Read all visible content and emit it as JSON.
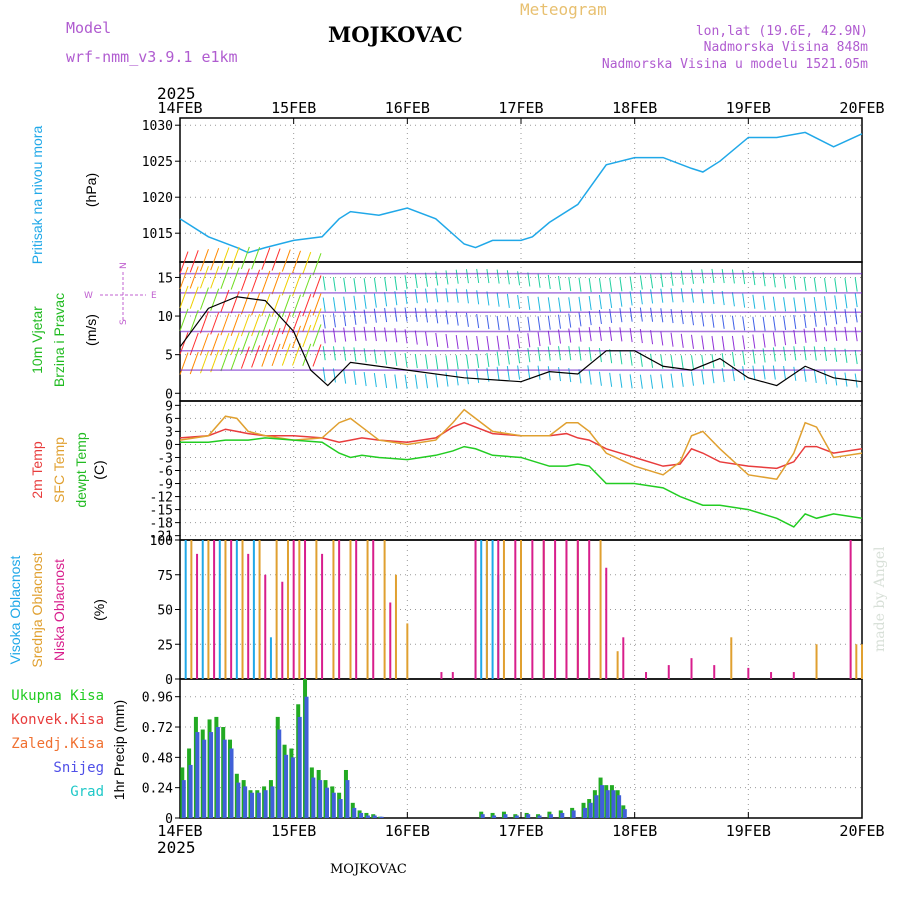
{
  "header": {
    "model_label": "Model",
    "model_name": "wrf-nmm_v3.9.1 e1km",
    "title": "MOJKOVAC",
    "meteogram": "Meteogram",
    "coords": "lon,lat (19.6E, 42.9N)",
    "elevation": "Nadmorska Visina 848m",
    "model_elevation": "Nadmorska Visina u modelu 1521.05m",
    "year_top": "2025",
    "year_bottom": "2025",
    "footer_title": "MOJKOVAC",
    "watermark": "made by Angel"
  },
  "chart_data": [
    {
      "type": "line",
      "panel": "pressure",
      "label": "Pritisak na nivou mora",
      "unit": "(hPa)",
      "ylim": [
        1011,
        1031
      ],
      "yticks": [
        "1030",
        "1025",
        "1020",
        "1015"
      ],
      "color": "#20a8e8",
      "x": [
        0,
        0.25,
        0.5,
        0.6,
        0.75,
        1.0,
        1.25,
        1.4,
        1.5,
        1.75,
        2.0,
        2.25,
        2.5,
        2.6,
        2.75,
        3.0,
        3.1,
        3.25,
        3.5,
        3.75,
        4.0,
        4.25,
        4.5,
        4.6,
        4.75,
        5.0,
        5.25,
        5.5,
        5.75,
        6.0
      ],
      "y": [
        1017,
        1014.5,
        1013,
        1012.3,
        1013,
        1014,
        1014.5,
        1017,
        1018,
        1017.5,
        1018.5,
        1017,
        1013.5,
        1013,
        1014,
        1014,
        1014.5,
        1016.5,
        1019,
        1024.5,
        1025.5,
        1025.5,
        1024,
        1023.5,
        1025,
        1028.3,
        1028.3,
        1029,
        1027,
        1028.8
      ]
    },
    {
      "type": "line",
      "panel": "wind",
      "label": "10m Vjetar",
      "label2": "Brzina i Pravac",
      "unit": "(m/s)",
      "compass": [
        "N",
        "W",
        "E",
        "S"
      ],
      "ylim": [
        -1,
        17
      ],
      "yticks": [
        "15",
        "10",
        "5",
        "0"
      ],
      "x": [
        0,
        0.25,
        0.5,
        0.75,
        1.0,
        1.15,
        1.3,
        1.5,
        1.75,
        2.0,
        2.5,
        3.0,
        3.25,
        3.5,
        3.75,
        4.0,
        4.25,
        4.5,
        4.75,
        5.0,
        5.25,
        5.5,
        5.75,
        6.0
      ],
      "y": [
        6,
        11,
        12.5,
        12,
        8,
        3,
        1,
        4,
        3.5,
        3,
        2,
        1.5,
        2.8,
        2.5,
        5.5,
        5.5,
        3.5,
        3,
        4.5,
        2,
        1,
        3.5,
        2,
        1.5
      ]
    },
    {
      "type": "line",
      "panel": "temperature",
      "labels": [
        "2m Temp",
        "SFC Temp",
        "dewpt Temp"
      ],
      "unit": "(C)",
      "ylim": [
        -22,
        10
      ],
      "yticks": [
        "9",
        "6",
        "3",
        "0",
        "-3",
        "-6",
        "-9",
        "-12",
        "-15",
        "-18",
        "-21"
      ],
      "x": [
        0,
        0.25,
        0.4,
        0.5,
        0.6,
        0.75,
        1.0,
        1.25,
        1.4,
        1.5,
        1.6,
        1.75,
        2.0,
        2.25,
        2.4,
        2.5,
        2.6,
        2.75,
        3.0,
        3.25,
        3.4,
        3.5,
        3.6,
        3.75,
        4.0,
        4.25,
        4.4,
        4.5,
        4.6,
        4.75,
        5.0,
        5.25,
        5.4,
        5.5,
        5.6,
        5.75,
        6.0
      ],
      "series": [
        {
          "name": "2m Temp",
          "color": "#e83c3c",
          "values": [
            1.5,
            2,
            3.5,
            3,
            2.5,
            2,
            2,
            1.5,
            0.5,
            1,
            1.5,
            1,
            0.5,
            1.5,
            4,
            5,
            4,
            2.5,
            2,
            2,
            2.5,
            1.5,
            1,
            -1,
            -3,
            -5,
            -4.5,
            -1,
            -2,
            -4,
            -5,
            -5.5,
            -4,
            -0.5,
            -0.5,
            -2,
            -1
          ]
        },
        {
          "name": "SFC Temp",
          "color": "#e0a030",
          "values": [
            1,
            2,
            6.5,
            6,
            3,
            2,
            1,
            1.5,
            5,
            6,
            4,
            1,
            0,
            1,
            5,
            8,
            6,
            3,
            2,
            2,
            5,
            5,
            3,
            -2,
            -5,
            -7,
            -4,
            2,
            3,
            -1,
            -7,
            -8,
            -2,
            5,
            4,
            -3,
            -2
          ]
        },
        {
          "name": "dewpt Temp",
          "color": "#22cc22",
          "values": [
            0.5,
            0.5,
            1,
            1,
            1,
            1.5,
            1,
            0.5,
            -2,
            -3,
            -2.5,
            -3,
            -3.5,
            -2.5,
            -1.5,
            -0.5,
            -1,
            -2.5,
            -3,
            -5,
            -5,
            -4.5,
            -5,
            -9,
            -9,
            -10,
            -12,
            -13,
            -14,
            -14,
            -15,
            -17,
            -19,
            -16,
            -17,
            -16,
            -17
          ]
        }
      ]
    },
    {
      "type": "bar",
      "panel": "cloud",
      "labels": [
        "Visoka Oblacnost",
        "Srednja Oblacnost",
        "Niska Oblacnost"
      ],
      "unit": "(%)",
      "ylim": [
        0,
        100
      ],
      "yticks": [
        "100",
        "75",
        "50",
        "25",
        "0"
      ],
      "series": [
        {
          "name": "Visoka Oblacnost",
          "color": "#20a8e8",
          "x": [
            0.05,
            0.2,
            0.35,
            0.5,
            0.65,
            0.8,
            1.5,
            2.6,
            2.65,
            2.7,
            2.75,
            2.8
          ],
          "values": [
            100,
            100,
            100,
            100,
            100,
            30,
            70,
            100,
            100,
            100,
            100,
            75
          ]
        },
        {
          "name": "Srednja Oblacnost",
          "color": "#e0a030",
          "x": [
            0.1,
            0.25,
            0.4,
            0.55,
            0.7,
            0.85,
            0.95,
            1.05,
            1.2,
            1.35,
            1.5,
            1.65,
            1.8,
            1.9,
            2.0,
            2.7,
            2.85,
            3.0,
            3.2,
            3.4,
            3.5,
            3.7,
            3.85,
            4.85,
            5.6,
            5.95,
            6.0
          ],
          "values": [
            100,
            100,
            100,
            100,
            100,
            100,
            100,
            100,
            100,
            100,
            100,
            100,
            100,
            75,
            40,
            100,
            100,
            100,
            100,
            100,
            100,
            100,
            20,
            30,
            25,
            25,
            25
          ]
        },
        {
          "name": "Niska Oblacnost",
          "color": "#d81e8c",
          "x": [
            0.15,
            0.3,
            0.45,
            0.6,
            0.75,
            0.9,
            1.0,
            1.1,
            1.25,
            1.4,
            1.55,
            1.7,
            1.85,
            2.3,
            2.4,
            2.6,
            2.8,
            2.95,
            3.1,
            3.2,
            3.3,
            3.4,
            3.5,
            3.6,
            3.75,
            3.9,
            4.1,
            4.3,
            4.5,
            4.7,
            5.0,
            5.2,
            5.4,
            5.9
          ],
          "values": [
            90,
            100,
            100,
            90,
            75,
            70,
            100,
            100,
            90,
            100,
            100,
            100,
            55,
            5,
            5,
            100,
            100,
            100,
            100,
            100,
            100,
            100,
            100,
            100,
            80,
            30,
            5,
            10,
            15,
            10,
            8,
            5,
            5,
            100
          ]
        }
      ]
    },
    {
      "type": "bar",
      "panel": "precip",
      "labels": [
        "Ukupna Kisa",
        "Konvek.Kisa",
        "Zaledj.Kisa",
        "Snijeg",
        "Grad"
      ],
      "label_colors": [
        "#22cc22",
        "#e83c3c",
        "#f07030",
        "#5050e8",
        "#20c8c8"
      ],
      "unit": "1hr Precip (mm)",
      "ylim": [
        0,
        1.1
      ],
      "yticks": [
        "0.96",
        "0.72",
        "0.48",
        "0.24",
        "0"
      ],
      "x": [
        0.02,
        0.08,
        0.14,
        0.2,
        0.26,
        0.32,
        0.38,
        0.44,
        0.5,
        0.56,
        0.62,
        0.68,
        0.74,
        0.8,
        0.86,
        0.92,
        0.98,
        1.04,
        1.1,
        1.16,
        1.22,
        1.28,
        1.34,
        1.4,
        1.46,
        1.52,
        1.58,
        1.64,
        1.7,
        1.76,
        2.65,
        2.75,
        2.85,
        2.95,
        3.05,
        3.15,
        3.25,
        3.35,
        3.45,
        3.55,
        3.6,
        3.65,
        3.7,
        3.75,
        3.8,
        3.85,
        3.9
      ],
      "series": [
        {
          "name": "Ukupna Kisa",
          "color": "#22aa22",
          "values": [
            0.4,
            0.55,
            0.8,
            0.7,
            0.78,
            0.8,
            0.72,
            0.62,
            0.35,
            0.3,
            0.22,
            0.22,
            0.25,
            0.3,
            0.8,
            0.58,
            0.55,
            0.9,
            1.1,
            0.4,
            0.38,
            0.3,
            0.25,
            0.2,
            0.38,
            0.12,
            0.06,
            0.04,
            0.03,
            0.01,
            0.05,
            0.04,
            0.05,
            0.03,
            0.04,
            0.03,
            0.05,
            0.06,
            0.08,
            0.12,
            0.15,
            0.22,
            0.32,
            0.26,
            0.26,
            0.22,
            0.1
          ]
        },
        {
          "name": "Snijeg",
          "color": "#4060d8",
          "values": [
            0.3,
            0.42,
            0.68,
            0.62,
            0.68,
            0.72,
            0.62,
            0.55,
            0.28,
            0.25,
            0.2,
            0.2,
            0.22,
            0.25,
            0.7,
            0.5,
            0.48,
            0.8,
            0.96,
            0.32,
            0.3,
            0.24,
            0.2,
            0.15,
            0.3,
            0.08,
            0.04,
            0.02,
            0.02,
            0.01,
            0.03,
            0.02,
            0.03,
            0.02,
            0.03,
            0.02,
            0.03,
            0.04,
            0.06,
            0.08,
            0.12,
            0.18,
            0.26,
            0.22,
            0.22,
            0.18,
            0.07
          ]
        }
      ]
    }
  ],
  "time_axis": {
    "labels": [
      "14FEB",
      "15FEB",
      "16FEB",
      "17FEB",
      "18FEB",
      "19FEB",
      "20FEB"
    ]
  }
}
